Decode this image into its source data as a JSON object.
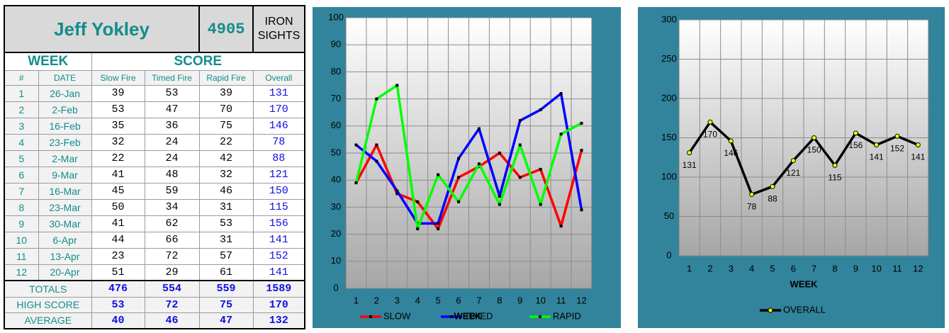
{
  "table": {
    "title": "Jeff Yokley",
    "number": "4905",
    "label": "IRON SIGHTS",
    "group_headers": [
      "WEEK",
      "SCORE"
    ],
    "columns": [
      "#",
      "DATE",
      "Slow Fire",
      "Timed Fire",
      "Rapid Fire",
      "Overall"
    ],
    "rows": [
      [
        1,
        "26-Jan",
        39,
        53,
        39,
        131
      ],
      [
        2,
        "2-Feb",
        53,
        47,
        70,
        170
      ],
      [
        3,
        "16-Feb",
        35,
        36,
        75,
        146
      ],
      [
        4,
        "23-Feb",
        32,
        24,
        22,
        78
      ],
      [
        5,
        "2-Mar",
        22,
        24,
        42,
        88
      ],
      [
        6,
        "9-Mar",
        41,
        48,
        32,
        121
      ],
      [
        7,
        "16-Mar",
        45,
        59,
        46,
        150
      ],
      [
        8,
        "23-Mar",
        50,
        34,
        31,
        115
      ],
      [
        9,
        "30-Mar",
        41,
        62,
        53,
        156
      ],
      [
        10,
        "6-Apr",
        44,
        66,
        31,
        141
      ],
      [
        11,
        "13-Apr",
        23,
        72,
        57,
        152
      ],
      [
        12,
        "20-Apr",
        51,
        29,
        61,
        141
      ]
    ],
    "summary": [
      [
        "TOTALS",
        476,
        554,
        559,
        1589
      ],
      [
        "HIGH SCORE",
        53,
        72,
        75,
        170
      ],
      [
        "AVERAGE",
        40,
        46,
        47,
        132
      ]
    ]
  },
  "chart_data": [
    {
      "type": "line",
      "xlabel": "WEEK",
      "categories": [
        1,
        2,
        3,
        4,
        5,
        6,
        7,
        8,
        9,
        10,
        11,
        12
      ],
      "series": [
        {
          "name": "SLOW",
          "color": "#ff0000",
          "values": [
            39,
            53,
            35,
            32,
            22,
            41,
            45,
            50,
            41,
            44,
            23,
            51
          ]
        },
        {
          "name": "TIMED",
          "color": "#0000ff",
          "values": [
            53,
            47,
            36,
            24,
            24,
            48,
            59,
            34,
            62,
            66,
            72,
            29
          ]
        },
        {
          "name": "RAPID",
          "color": "#00ff00",
          "values": [
            39,
            70,
            75,
            22,
            42,
            32,
            46,
            31,
            53,
            31,
            57,
            61
          ]
        }
      ],
      "ylim": [
        0,
        100
      ],
      "yticks": [
        0,
        10,
        20,
        30,
        40,
        50,
        60,
        70,
        80,
        90,
        100
      ],
      "grid": true,
      "legend": "bottom",
      "data_labels": false
    },
    {
      "type": "line",
      "xlabel": "WEEK",
      "categories": [
        1,
        2,
        3,
        4,
        5,
        6,
        7,
        8,
        9,
        10,
        11,
        12
      ],
      "series": [
        {
          "name": "OVERALL",
          "color": "#000000",
          "values": [
            131,
            170,
            146,
            78,
            88,
            121,
            150,
            115,
            156,
            141,
            152,
            141
          ]
        }
      ],
      "ylim": [
        0,
        300
      ],
      "yticks": [
        0,
        50,
        100,
        150,
        200,
        250,
        300
      ],
      "grid": true,
      "legend": "bottom",
      "data_labels": true
    }
  ]
}
